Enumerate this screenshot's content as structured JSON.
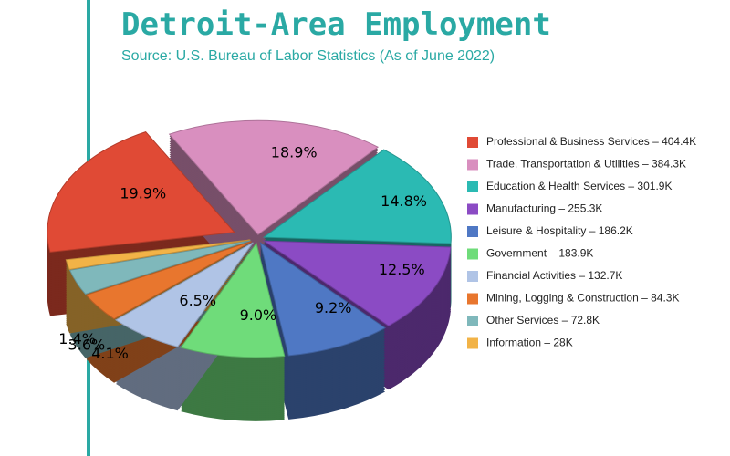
{
  "chart_data": {
    "type": "pie",
    "title": "Detroit-Area Employment",
    "subtitle": "Source: U.S. Bureau of Labor Statistics (As of June 2022)",
    "categories": [
      "Professional & Business Services – 404.4K",
      "Trade, Transportation & Utilities – 384.3K",
      "Education & Health Services – 301.9K",
      "Manufacturing – 255.3K",
      "Leisure & Hospitality – 186.2K",
      "Government – 183.9K",
      "Financial Activities – 132.7K",
      "Mining, Logging & Construction – 84.3K",
      "Other Services – 72.8K",
      "Information – 28K"
    ],
    "values": [
      19.9,
      18.9,
      14.8,
      12.5,
      9.2,
      9.0,
      6.5,
      4.1,
      3.6,
      1.4
    ],
    "value_labels": [
      "19.9%",
      "18.9%",
      "14.8%",
      "12.5%",
      "9.2%",
      "9.0%",
      "6.5%",
      "4.1%",
      "3.6%",
      "1.4%"
    ],
    "colors": [
      "#e04a35",
      "#d98fbf",
      "#2bbab3",
      "#8b4bc4",
      "#4f78c4",
      "#6fdc7a",
      "#b0c4e6",
      "#e8762e",
      "#7fb8bb",
      "#f2b347"
    ]
  }
}
